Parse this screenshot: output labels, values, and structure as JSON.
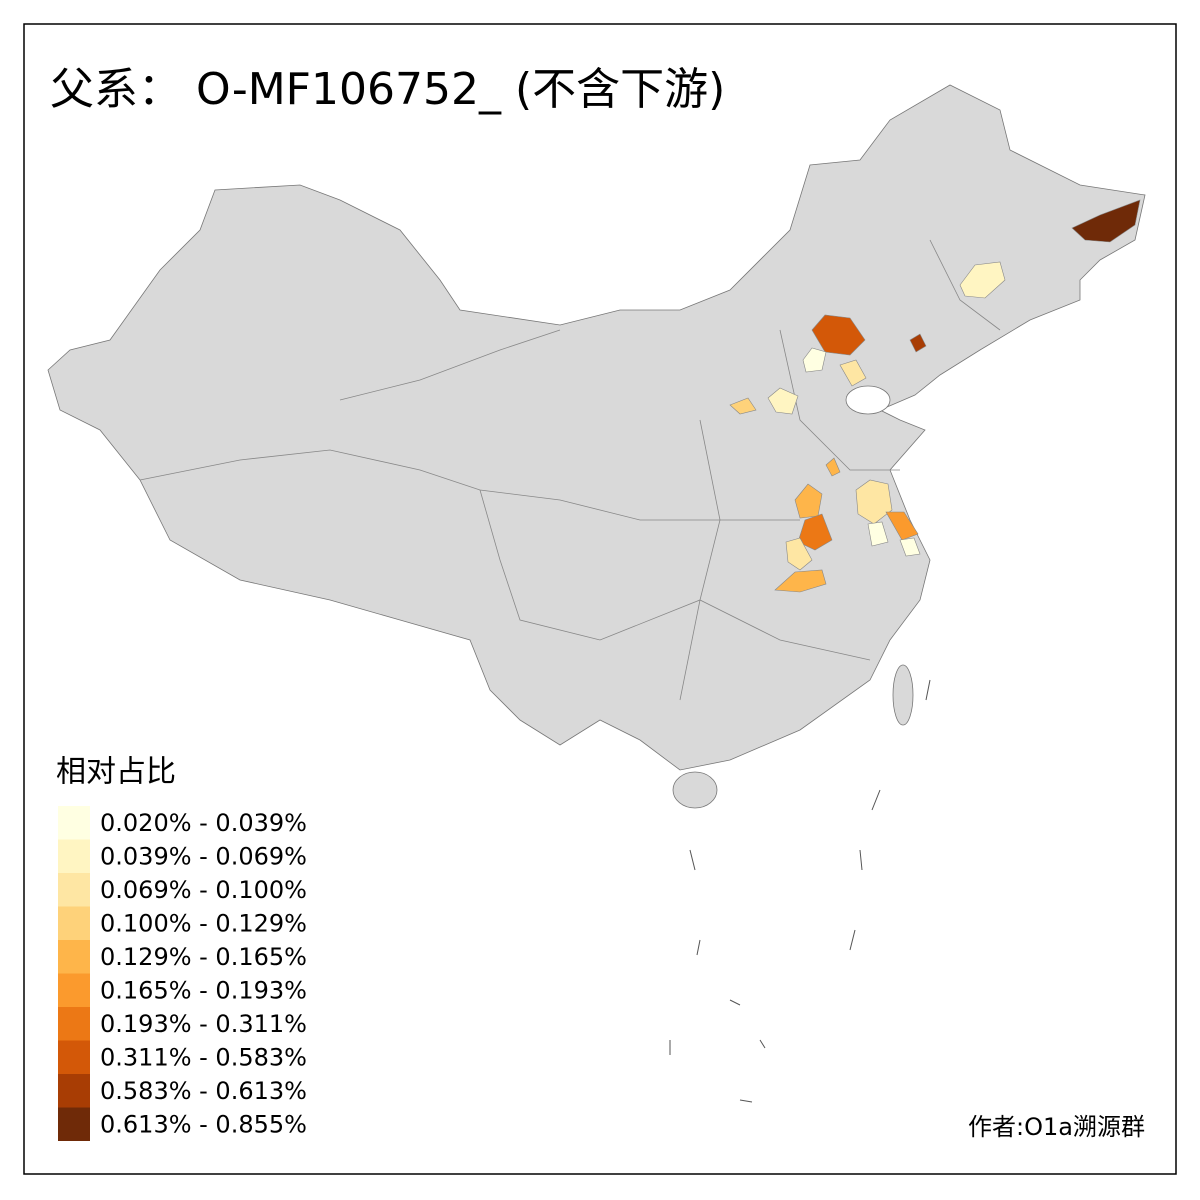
{
  "title": "父系： O-MF106752_ (不含下游)",
  "legend": {
    "title": "相对占比",
    "items": [
      {
        "label": "0.020% - 0.039%",
        "color": "#ffffe2"
      },
      {
        "label": "0.039% - 0.069%",
        "color": "#fff5c2"
      },
      {
        "label": "0.069% - 0.100%",
        "color": "#fee6a3"
      },
      {
        "label": "0.100% - 0.129%",
        "color": "#fed27a"
      },
      {
        "label": "0.129% - 0.165%",
        "color": "#feb54a"
      },
      {
        "label": "0.165% - 0.193%",
        "color": "#fb9a2d"
      },
      {
        "label": "0.193% - 0.311%",
        "color": "#ec7815"
      },
      {
        "label": "0.311% - 0.583%",
        "color": "#d35808"
      },
      {
        "label": "0.583% - 0.613%",
        "color": "#a83d04"
      },
      {
        "label": "0.613% - 0.855%",
        "color": "#6f2a08"
      }
    ]
  },
  "credit": "作者:O1a溯源群"
}
